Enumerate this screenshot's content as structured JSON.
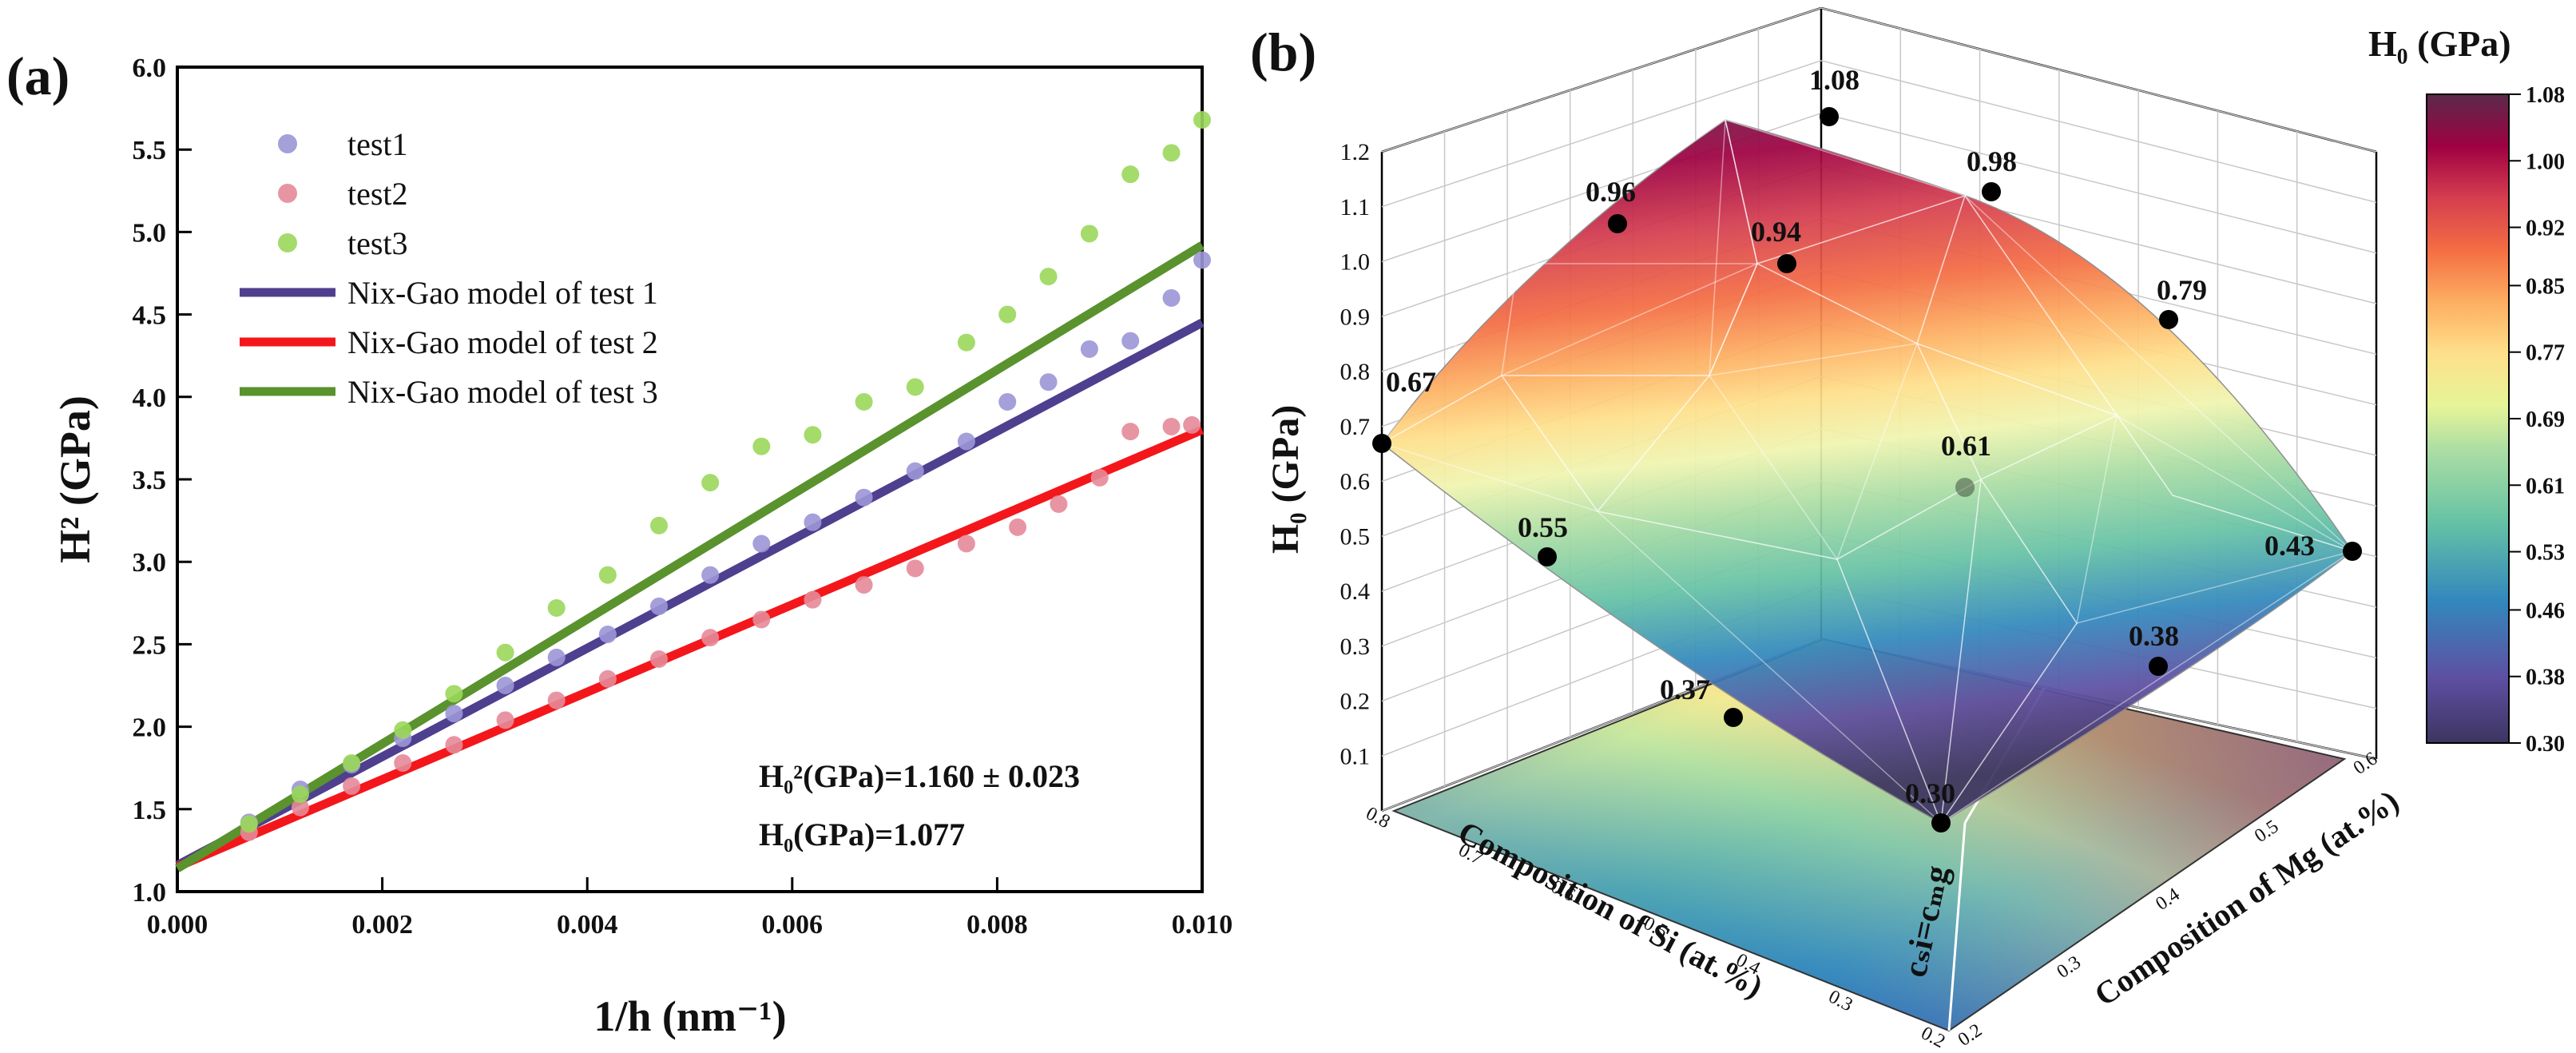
{
  "panel_a": {
    "label": "(a)",
    "annotation_h0sq": "H₀²(GPa)=1.160 ± 0.023",
    "annotation_h0": "H₀(GPa)=1.077"
  },
  "panel_b": {
    "label": "(b)",
    "colorbar_title": "H₀ (GPa)",
    "colorbar_ticks": [
      "1.08",
      "1.00",
      "0.92",
      "0.85",
      "0.77",
      "0.69",
      "0.61",
      "0.53",
      "0.46",
      "0.38",
      "0.30"
    ],
    "diagonal_label": "cₛi=cₘg"
  },
  "colors": {
    "test1": "#9b96d6",
    "test2": "#e58a99",
    "test3": "#9ad75a",
    "model1": "#4f3f8f",
    "model2": "#f3171b",
    "model3": "#5a922e",
    "colormap": [
      "#3d3560",
      "#5e4fa2",
      "#3288bd",
      "#66c2a5",
      "#abdda4",
      "#e6f598",
      "#fee08b",
      "#fdae61",
      "#f46d43",
      "#d53e4f",
      "#9e0142",
      "#5a2a4a"
    ]
  },
  "chart_data": [
    {
      "type": "scatter",
      "xlabel": "1/h (nm⁻¹)",
      "ylabel": "H² (GPa)",
      "xlim": [
        0,
        0.01
      ],
      "ylim": [
        1.0,
        6.0
      ],
      "xticks": [
        "0.000",
        "0.002",
        "0.004",
        "0.006",
        "0.008",
        "0.010"
      ],
      "yticks": [
        "1.0",
        "1.5",
        "2.0",
        "2.5",
        "3.0",
        "3.5",
        "4.0",
        "4.5",
        "5.0",
        "5.5",
        "6.0"
      ],
      "legend_position": "top-left",
      "series": [
        {
          "name": "test1",
          "kind": "scatter",
          "x": [
            0.0007,
            0.0012,
            0.0017,
            0.0022,
            0.0027,
            0.0032,
            0.0037,
            0.0042,
            0.0047,
            0.0052,
            0.0057,
            0.0062,
            0.0067,
            0.0072,
            0.0077,
            0.0081,
            0.0085,
            0.0089,
            0.0093,
            0.0097,
            0.01
          ],
          "y": [
            1.42,
            1.62,
            1.77,
            1.93,
            2.08,
            2.25,
            2.42,
            2.56,
            2.73,
            2.92,
            3.11,
            3.24,
            3.39,
            3.55,
            3.73,
            3.97,
            4.09,
            4.29,
            4.34,
            4.6,
            4.83
          ]
        },
        {
          "name": "test2",
          "kind": "scatter",
          "x": [
            0.0007,
            0.0012,
            0.0017,
            0.0022,
            0.0027,
            0.0032,
            0.0037,
            0.0042,
            0.0047,
            0.0052,
            0.0057,
            0.0062,
            0.0067,
            0.0072,
            0.0077,
            0.0082,
            0.0086,
            0.009,
            0.0093,
            0.0097,
            0.0099
          ],
          "y": [
            1.36,
            1.51,
            1.64,
            1.78,
            1.89,
            2.04,
            2.16,
            2.29,
            2.41,
            2.54,
            2.65,
            2.77,
            2.86,
            2.96,
            3.11,
            3.21,
            3.35,
            3.51,
            3.79,
            3.82,
            3.83
          ]
        },
        {
          "name": "test3",
          "kind": "scatter",
          "x": [
            0.0007,
            0.0012,
            0.0017,
            0.0022,
            0.0027,
            0.0032,
            0.0037,
            0.0042,
            0.0047,
            0.0052,
            0.0057,
            0.0062,
            0.0067,
            0.0072,
            0.0077,
            0.0081,
            0.0085,
            0.0089,
            0.0093,
            0.0097,
            0.01
          ],
          "y": [
            1.41,
            1.59,
            1.78,
            1.98,
            2.2,
            2.45,
            2.72,
            2.92,
            3.22,
            3.48,
            3.7,
            3.77,
            3.97,
            4.06,
            4.33,
            4.5,
            4.73,
            4.99,
            5.35,
            5.48,
            5.68
          ]
        },
        {
          "name": "Nix-Gao model of test 1",
          "kind": "line",
          "x": [
            0,
            0.01
          ],
          "y": [
            1.16,
            4.45
          ]
        },
        {
          "name": "Nix-Gao model of test 2",
          "kind": "line",
          "x": [
            0,
            0.01
          ],
          "y": [
            1.15,
            3.8
          ]
        },
        {
          "name": "Nix-Gao model of test 3",
          "kind": "line",
          "x": [
            0,
            0.01
          ],
          "y": [
            1.14,
            4.92
          ]
        }
      ]
    },
    {
      "type": "surface3d",
      "zlabel": "H₀ (GPa)",
      "xlabel": "Composition of Si (at.%)",
      "ylabel": "Composition of Mg (at.%)",
      "zlim": [
        0,
        1.2
      ],
      "zticks": [
        "0.1",
        "0.2",
        "0.3",
        "0.4",
        "0.5",
        "0.6",
        "0.7",
        "0.8",
        "0.9",
        "1.0",
        "1.1",
        "1.2"
      ],
      "si_ticks": [
        "0.8",
        "0.7",
        "0.6",
        "0.5",
        "0.4",
        "0.3",
        "0.2"
      ],
      "mg_ticks": [
        "0.2",
        "0.3",
        "0.4",
        "0.5",
        "0.6"
      ],
      "colorbar_range": [
        0.3,
        1.08
      ],
      "points": [
        {
          "label": "1.08",
          "value": 1.08
        },
        {
          "label": "0.96",
          "value": 0.96
        },
        {
          "label": "0.98",
          "value": 0.98
        },
        {
          "label": "0.94",
          "value": 0.94
        },
        {
          "label": "0.79",
          "value": 0.79
        },
        {
          "label": "0.67",
          "value": 0.67
        },
        {
          "label": "0.61",
          "value": 0.61
        },
        {
          "label": "0.55",
          "value": 0.55
        },
        {
          "label": "0.43",
          "value": 0.43
        },
        {
          "label": "0.38",
          "value": 0.38
        },
        {
          "label": "0.37",
          "value": 0.37
        },
        {
          "label": "0.30",
          "value": 0.3
        }
      ]
    }
  ]
}
